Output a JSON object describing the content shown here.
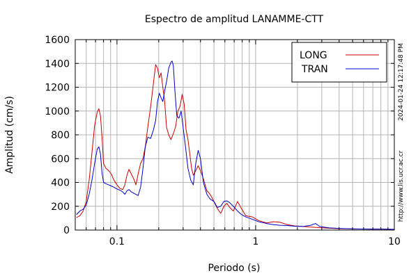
{
  "chart_data": {
    "type": "line",
    "title": "Espectro de amplitud LANAMME-CTT",
    "xlabel": "Periodo (s)",
    "ylabel": "Amplitud (cm/s)",
    "x_scale": "log",
    "xlim": [
      0.05,
      10
    ],
    "ylim": [
      0,
      1600
    ],
    "y_ticks": [
      0,
      200,
      400,
      600,
      800,
      1000,
      1200,
      1400,
      1600
    ],
    "x_ticks": [
      0.1,
      1,
      10
    ],
    "x_tick_labels": [
      "0.1",
      "1",
      "10"
    ],
    "grid": true,
    "legend_position": "top-right",
    "timestamp": "2024-01-24 12:17:48 PM",
    "url": "http://www.lis.ucr.ac.cr",
    "series": [
      {
        "name": "LONG",
        "color": "#cc0000",
        "points": [
          [
            0.051,
            105
          ],
          [
            0.054,
            120
          ],
          [
            0.057,
            160
          ],
          [
            0.06,
            240
          ],
          [
            0.063,
            420
          ],
          [
            0.066,
            650
          ],
          [
            0.069,
            880
          ],
          [
            0.072,
            990
          ],
          [
            0.074,
            1020
          ],
          [
            0.076,
            960
          ],
          [
            0.078,
            780
          ],
          [
            0.08,
            560
          ],
          [
            0.083,
            520
          ],
          [
            0.087,
            500
          ],
          [
            0.091,
            470
          ],
          [
            0.095,
            420
          ],
          [
            0.1,
            380
          ],
          [
            0.105,
            350
          ],
          [
            0.11,
            340
          ],
          [
            0.114,
            380
          ],
          [
            0.118,
            460
          ],
          [
            0.122,
            510
          ],
          [
            0.127,
            470
          ],
          [
            0.132,
            430
          ],
          [
            0.137,
            380
          ],
          [
            0.142,
            470
          ],
          [
            0.148,
            560
          ],
          [
            0.154,
            600
          ],
          [
            0.16,
            700
          ],
          [
            0.167,
            870
          ],
          [
            0.175,
            1040
          ],
          [
            0.183,
            1230
          ],
          [
            0.19,
            1390
          ],
          [
            0.196,
            1360
          ],
          [
            0.202,
            1280
          ],
          [
            0.208,
            1320
          ],
          [
            0.214,
            1200
          ],
          [
            0.22,
            1100
          ],
          [
            0.228,
            860
          ],
          [
            0.236,
            800
          ],
          [
            0.245,
            760
          ],
          [
            0.255,
            810
          ],
          [
            0.265,
            870
          ],
          [
            0.275,
            1000
          ],
          [
            0.285,
            1040
          ],
          [
            0.295,
            1140
          ],
          [
            0.305,
            1060
          ],
          [
            0.315,
            840
          ],
          [
            0.325,
            760
          ],
          [
            0.335,
            640
          ],
          [
            0.345,
            520
          ],
          [
            0.355,
            460
          ],
          [
            0.37,
            500
          ],
          [
            0.385,
            540
          ],
          [
            0.4,
            500
          ],
          [
            0.42,
            430
          ],
          [
            0.445,
            330
          ],
          [
            0.47,
            300
          ],
          [
            0.5,
            240
          ],
          [
            0.53,
            180
          ],
          [
            0.56,
            140
          ],
          [
            0.59,
            200
          ],
          [
            0.62,
            225
          ],
          [
            0.65,
            190
          ],
          [
            0.69,
            160
          ],
          [
            0.74,
            240
          ],
          [
            0.79,
            180
          ],
          [
            0.85,
            120
          ],
          [
            0.95,
            110
          ],
          [
            1.05,
            80
          ],
          [
            1.2,
            60
          ],
          [
            1.35,
            70
          ],
          [
            1.5,
            65
          ],
          [
            1.7,
            45
          ],
          [
            1.9,
            35
          ],
          [
            2.2,
            30
          ],
          [
            2.5,
            25
          ],
          [
            2.9,
            20
          ],
          [
            3.4,
            15
          ],
          [
            4.0,
            12
          ],
          [
            5.0,
            10
          ],
          [
            6.5,
            8
          ],
          [
            8.0,
            8
          ],
          [
            10.0,
            6
          ]
        ]
      },
      {
        "name": "TRAN",
        "color": "#0000cc",
        "points": [
          [
            0.051,
            130
          ],
          [
            0.054,
            160
          ],
          [
            0.057,
            175
          ],
          [
            0.06,
            210
          ],
          [
            0.063,
            300
          ],
          [
            0.066,
            420
          ],
          [
            0.069,
            560
          ],
          [
            0.072,
            680
          ],
          [
            0.074,
            700
          ],
          [
            0.076,
            640
          ],
          [
            0.078,
            480
          ],
          [
            0.08,
            400
          ],
          [
            0.083,
            390
          ],
          [
            0.087,
            380
          ],
          [
            0.091,
            370
          ],
          [
            0.095,
            360
          ],
          [
            0.1,
            345
          ],
          [
            0.105,
            335
          ],
          [
            0.11,
            320
          ],
          [
            0.114,
            300
          ],
          [
            0.118,
            330
          ],
          [
            0.122,
            340
          ],
          [
            0.127,
            320
          ],
          [
            0.132,
            310
          ],
          [
            0.137,
            300
          ],
          [
            0.142,
            290
          ],
          [
            0.148,
            360
          ],
          [
            0.154,
            520
          ],
          [
            0.16,
            700
          ],
          [
            0.167,
            780
          ],
          [
            0.175,
            770
          ],
          [
            0.183,
            840
          ],
          [
            0.19,
            920
          ],
          [
            0.196,
            1080
          ],
          [
            0.202,
            1150
          ],
          [
            0.208,
            1110
          ],
          [
            0.214,
            1080
          ],
          [
            0.22,
            1160
          ],
          [
            0.228,
            1250
          ],
          [
            0.236,
            1360
          ],
          [
            0.245,
            1410
          ],
          [
            0.25,
            1420
          ],
          [
            0.255,
            1380
          ],
          [
            0.262,
            1160
          ],
          [
            0.27,
            960
          ],
          [
            0.28,
            940
          ],
          [
            0.29,
            1000
          ],
          [
            0.3,
            860
          ],
          [
            0.312,
            700
          ],
          [
            0.325,
            520
          ],
          [
            0.34,
            420
          ],
          [
            0.355,
            380
          ],
          [
            0.37,
            560
          ],
          [
            0.385,
            670
          ],
          [
            0.4,
            600
          ],
          [
            0.42,
            400
          ],
          [
            0.445,
            300
          ],
          [
            0.47,
            260
          ],
          [
            0.5,
            240
          ],
          [
            0.53,
            190
          ],
          [
            0.56,
            200
          ],
          [
            0.59,
            240
          ],
          [
            0.62,
            245
          ],
          [
            0.65,
            230
          ],
          [
            0.69,
            200
          ],
          [
            0.74,
            160
          ],
          [
            0.79,
            130
          ],
          [
            0.85,
            110
          ],
          [
            0.95,
            90
          ],
          [
            1.05,
            70
          ],
          [
            1.2,
            55
          ],
          [
            1.35,
            45
          ],
          [
            1.5,
            40
          ],
          [
            1.7,
            38
          ],
          [
            1.9,
            32
          ],
          [
            2.2,
            30
          ],
          [
            2.5,
            40
          ],
          [
            2.7,
            55
          ],
          [
            2.9,
            30
          ],
          [
            3.4,
            18
          ],
          [
            4.0,
            14
          ],
          [
            5.0,
            10
          ],
          [
            6.5,
            8
          ],
          [
            8.0,
            8
          ],
          [
            10.0,
            6
          ]
        ]
      }
    ]
  }
}
